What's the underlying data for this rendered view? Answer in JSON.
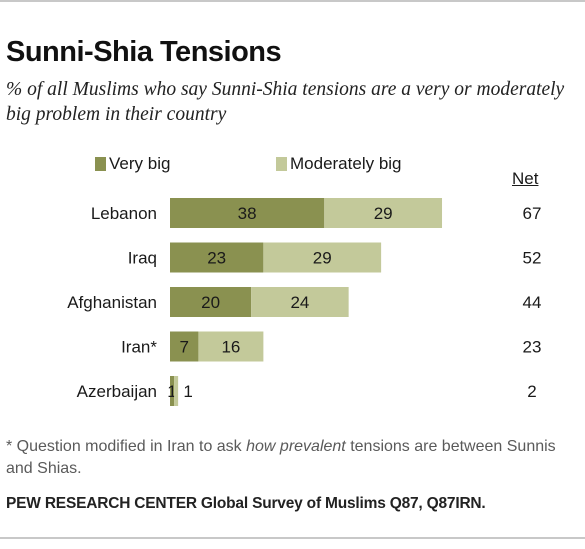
{
  "chart_data": {
    "type": "bar",
    "orientation": "horizontal",
    "stacked": true,
    "title": "Sunni-Shia Tensions",
    "subtitle": "% of all Muslims who say Sunni-Shia tensions are a very or moderately big problem in their country",
    "categories": [
      "Lebanon",
      "Iraq",
      "Afghanistan",
      "Iran*",
      "Azerbaijan"
    ],
    "series": [
      {
        "name": "Very big",
        "values": [
          38,
          23,
          20,
          7,
          1
        ],
        "color": "#8a9150"
      },
      {
        "name": "Moderately big",
        "values": [
          29,
          29,
          24,
          16,
          1
        ],
        "color": "#c3c99a"
      }
    ],
    "net_label": "Net",
    "net": [
      67,
      52,
      44,
      23,
      2
    ],
    "legend_position": "top",
    "grid": false
  },
  "footnote": {
    "prefix": "* Question modified in Iran to ask ",
    "emphasis": "how prevalent",
    "suffix": " tensions are between Sunnis and Shias."
  },
  "source": "PEW RESEARCH CENTER Global Survey of Muslims Q87, Q87IRN."
}
